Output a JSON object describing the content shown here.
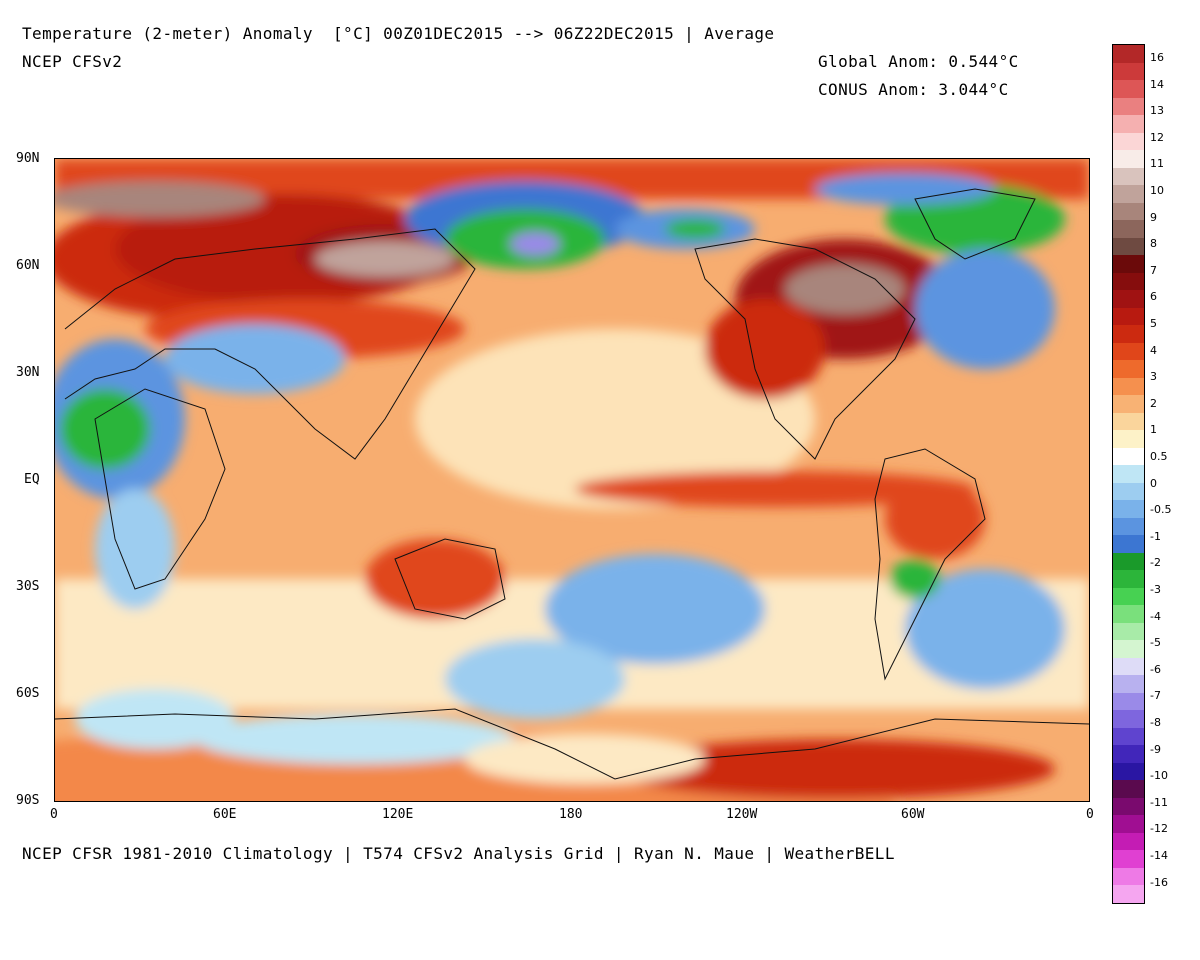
{
  "header": {
    "title": "Temperature (2-meter) Anomaly  [°C] 00Z01DEC2015 --> 06Z22DEC2015 | Average",
    "subtitle": "NCEP CFSv2",
    "global_anom": "Global Anom: 0.544°C",
    "conus_anom": "CONUS Anom: 3.044°C"
  },
  "footer": {
    "credit": "NCEP CFSR 1981-2010 Climatology | T574 CFSv2 Analysis Grid | Ryan N. Maue | WeatherBELL"
  },
  "axes": {
    "lat_labels": [
      "90N",
      "60N",
      "30N",
      "EQ",
      "30S",
      "60S",
      "90S"
    ],
    "lon_labels": [
      "0",
      "60E",
      "120E",
      "180",
      "120W",
      "60W",
      "0"
    ]
  },
  "colorbar": {
    "labels": [
      "16",
      "14",
      "13",
      "12",
      "11",
      "10",
      "9",
      "8",
      "7",
      "6",
      "5",
      "4",
      "3",
      "2",
      "1",
      "0.5",
      "0",
      "-0.5",
      "-1",
      "-2",
      "-3",
      "-4",
      "-5",
      "-6",
      "-7",
      "-8",
      "-9",
      "-10",
      "-11",
      "-12",
      "-14",
      "-16"
    ],
    "colors": [
      "#b32828",
      "#cc3a3a",
      "#dd5656",
      "#ea8080",
      "#f5b0b0",
      "#fbd6d6",
      "#f8ece8",
      "#d9c3bd",
      "#c0a39b",
      "#a8857b",
      "#8c665c",
      "#6e4a41",
      "#6b0a0a",
      "#860d0d",
      "#a01212",
      "#b81a10",
      "#cc2a10",
      "#e0461a",
      "#ee6a2c",
      "#f5904e",
      "#f8b274",
      "#fad59c",
      "#fdf2c8",
      "#ffffff",
      "#bfe6f5",
      "#9dcdf0",
      "#7ab2ea",
      "#5b94e0",
      "#3c76d2",
      "#1a9a2a",
      "#2cb53a",
      "#47d152",
      "#7ae07c",
      "#a8eba8",
      "#d4f5d0",
      "#dedcf7",
      "#b8b1ef",
      "#9a8ae8",
      "#7e66de",
      "#5f44cf",
      "#4126ba",
      "#2a16a3",
      "#5a0a4e",
      "#7a0a6e",
      "#a00e92",
      "#c41cb4",
      "#e040d2",
      "#ee7ae6",
      "#f5a6f0"
    ]
  }
}
